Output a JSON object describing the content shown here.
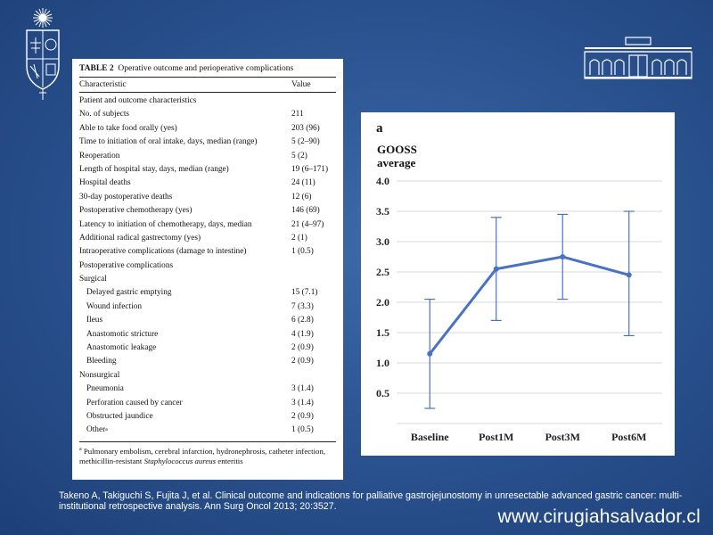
{
  "table": {
    "title_bold": "TABLE 2",
    "title_rest": "Operative outcome and perioperative complications",
    "col_characteristic": "Characteristic",
    "col_value": "Value",
    "rows": [
      {
        "label": "Patient and outcome characteristics",
        "value": "",
        "indent": false
      },
      {
        "label": "No. of subjects",
        "value": "211",
        "indent": false
      },
      {
        "label": "Able to take food orally (yes)",
        "value": "203 (96)",
        "indent": false
      },
      {
        "label": "Time to initiation of oral intake, days, median (range)",
        "value": "5 (2–90)",
        "indent": false
      },
      {
        "label": "Reoperation",
        "value": "5 (2)",
        "indent": false
      },
      {
        "label": "Length of hospital stay, days, median (range)",
        "value": "19 (6–171)",
        "indent": false
      },
      {
        "label": "Hospital deaths",
        "value": "24 (11)",
        "indent": false
      },
      {
        "label": "30-day postoperative deaths",
        "value": "12 (6)",
        "indent": false
      },
      {
        "label": "Postoperative chemotherapy (yes)",
        "value": "146 (69)",
        "indent": false
      },
      {
        "label": "Latency to initiation of chemotherapy, days, median",
        "value": "21 (4–97)",
        "indent": false
      },
      {
        "label": "Additional radical gastrectomy (yes)",
        "value": "2 (1)",
        "indent": false
      },
      {
        "label": "Intraoperative complications (damage to intestine)",
        "value": "1 (0.5)",
        "indent": false
      },
      {
        "label": "Postoperative complications",
        "value": "",
        "indent": false
      },
      {
        "label": "Surgical",
        "value": "",
        "indent": false
      },
      {
        "label": "Delayed gastric emptying",
        "value": "15 (7.1)",
        "indent": true
      },
      {
        "label": "Wound infection",
        "value": "7 (3.3)",
        "indent": true
      },
      {
        "label": "Ileus",
        "value": "6 (2.8)",
        "indent": true
      },
      {
        "label": "Anastomotic stricture",
        "value": "4 (1.9)",
        "indent": true
      },
      {
        "label": "Anastomotic leakage",
        "value": "2 (0.9)",
        "indent": true
      },
      {
        "label": "Bleeding",
        "value": "2 (0.9)",
        "indent": true
      },
      {
        "label": "Nonsurgical",
        "value": "",
        "indent": false
      },
      {
        "label": "Pneumonia",
        "value": "3 (1.4)",
        "indent": true
      },
      {
        "label": "Perforation caused by cancer",
        "value": "3 (1.4)",
        "indent": true
      },
      {
        "label": "Obstructed jaundice",
        "value": "2 (0.9)",
        "indent": true
      },
      {
        "label": "Other",
        "value": "1 (0.5)",
        "indent": true,
        "sup": "a"
      }
    ],
    "footnote_mark": "a",
    "footnote_text": "Pulmonary embolism, cerebral infarction, hydronephrosis, catheter infection, methicillin-resistant ",
    "footnote_italic": "Staphylococcus aureus",
    "footnote_end": " enteritis"
  },
  "chart_data": {
    "type": "line",
    "panel_letter": "a",
    "ylabel_line1": "GOOSS",
    "ylabel_line2": "average",
    "categories": [
      "Baseline",
      "Post1M",
      "Post3M",
      "Post6M"
    ],
    "values": [
      1.15,
      2.55,
      2.75,
      2.45
    ],
    "error_low": [
      0.25,
      1.7,
      2.05,
      1.45
    ],
    "error_high": [
      2.05,
      3.4,
      3.45,
      3.5
    ],
    "y_ticks": [
      "0.5",
      "1.0",
      "1.5",
      "2.0",
      "2.5",
      "3.0",
      "3.5",
      "4.0"
    ],
    "ylim": [
      0,
      4.0
    ],
    "grid": true,
    "line_color": "#4a72c4"
  },
  "citation": "Takeno A, Takiguchi S, Fujita J, et al. Clinical outcome and indications for palliative gastrojejunostomy in unresectable advanced gastric cancer: multi-institutional retrospective analysis. Ann Surg Oncol 2013; 20:3527.",
  "website": "www.cirugiahsalvador.cl",
  "icons": {
    "left_logo": "university-crest-icon",
    "right_logo": "hospital-building-icon"
  }
}
